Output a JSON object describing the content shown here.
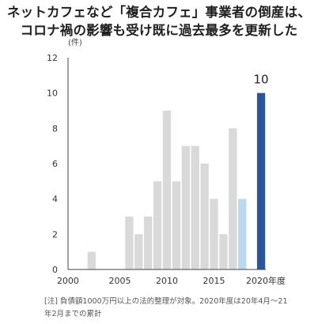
{
  "title_lines": [
    "ネットカフェなど「複合カフェ」事業者の倒産は、",
    "コロナ禍の影響も受け既に過去最多を更新した"
  ],
  "colors": {
    "bar_default": "#d9d9d9",
    "bar_2020_partial": "#bdd7ee",
    "bar_2020_full": "#2f5597",
    "axis": "#444444"
  },
  "chart_data": {
    "type": "bar",
    "unit_label": "(件)",
    "x_tick_labels": [
      "2000",
      "2005",
      "2010",
      "2015",
      "2020年度"
    ],
    "y_tick_labels": [
      "0",
      "2",
      "4",
      "6",
      "8",
      "10",
      "12"
    ],
    "ylim": [
      0,
      12
    ],
    "categories": [
      "2000",
      "2001",
      "2002",
      "2003",
      "2004",
      "2005",
      "2006",
      "2007",
      "2008",
      "2009",
      "2010",
      "2011",
      "2012",
      "2013",
      "2014",
      "2015",
      "2016",
      "2017",
      "2018",
      "2019",
      "2020"
    ],
    "values": [
      0,
      0,
      1,
      0,
      0,
      0,
      3,
      2,
      3,
      5,
      9,
      5,
      7,
      7,
      6,
      4,
      2,
      8,
      4,
      0,
      10
    ],
    "bar_colors": [
      "#d9d9d9",
      "#d9d9d9",
      "#d9d9d9",
      "#d9d9d9",
      "#d9d9d9",
      "#d9d9d9",
      "#d9d9d9",
      "#d9d9d9",
      "#d9d9d9",
      "#d9d9d9",
      "#d9d9d9",
      "#d9d9d9",
      "#d9d9d9",
      "#d9d9d9",
      "#d9d9d9",
      "#d9d9d9",
      "#d9d9d9",
      "#d9d9d9",
      "#bdd7ee",
      "#d9d9d9",
      "#2f5597"
    ],
    "data_label": {
      "category": "2020",
      "text": "10"
    }
  },
  "note_lines": [
    "[注] 負債額1000万円以上の法的整理が対象。2020年度は20年4月〜21",
    "年2月までの累計"
  ]
}
